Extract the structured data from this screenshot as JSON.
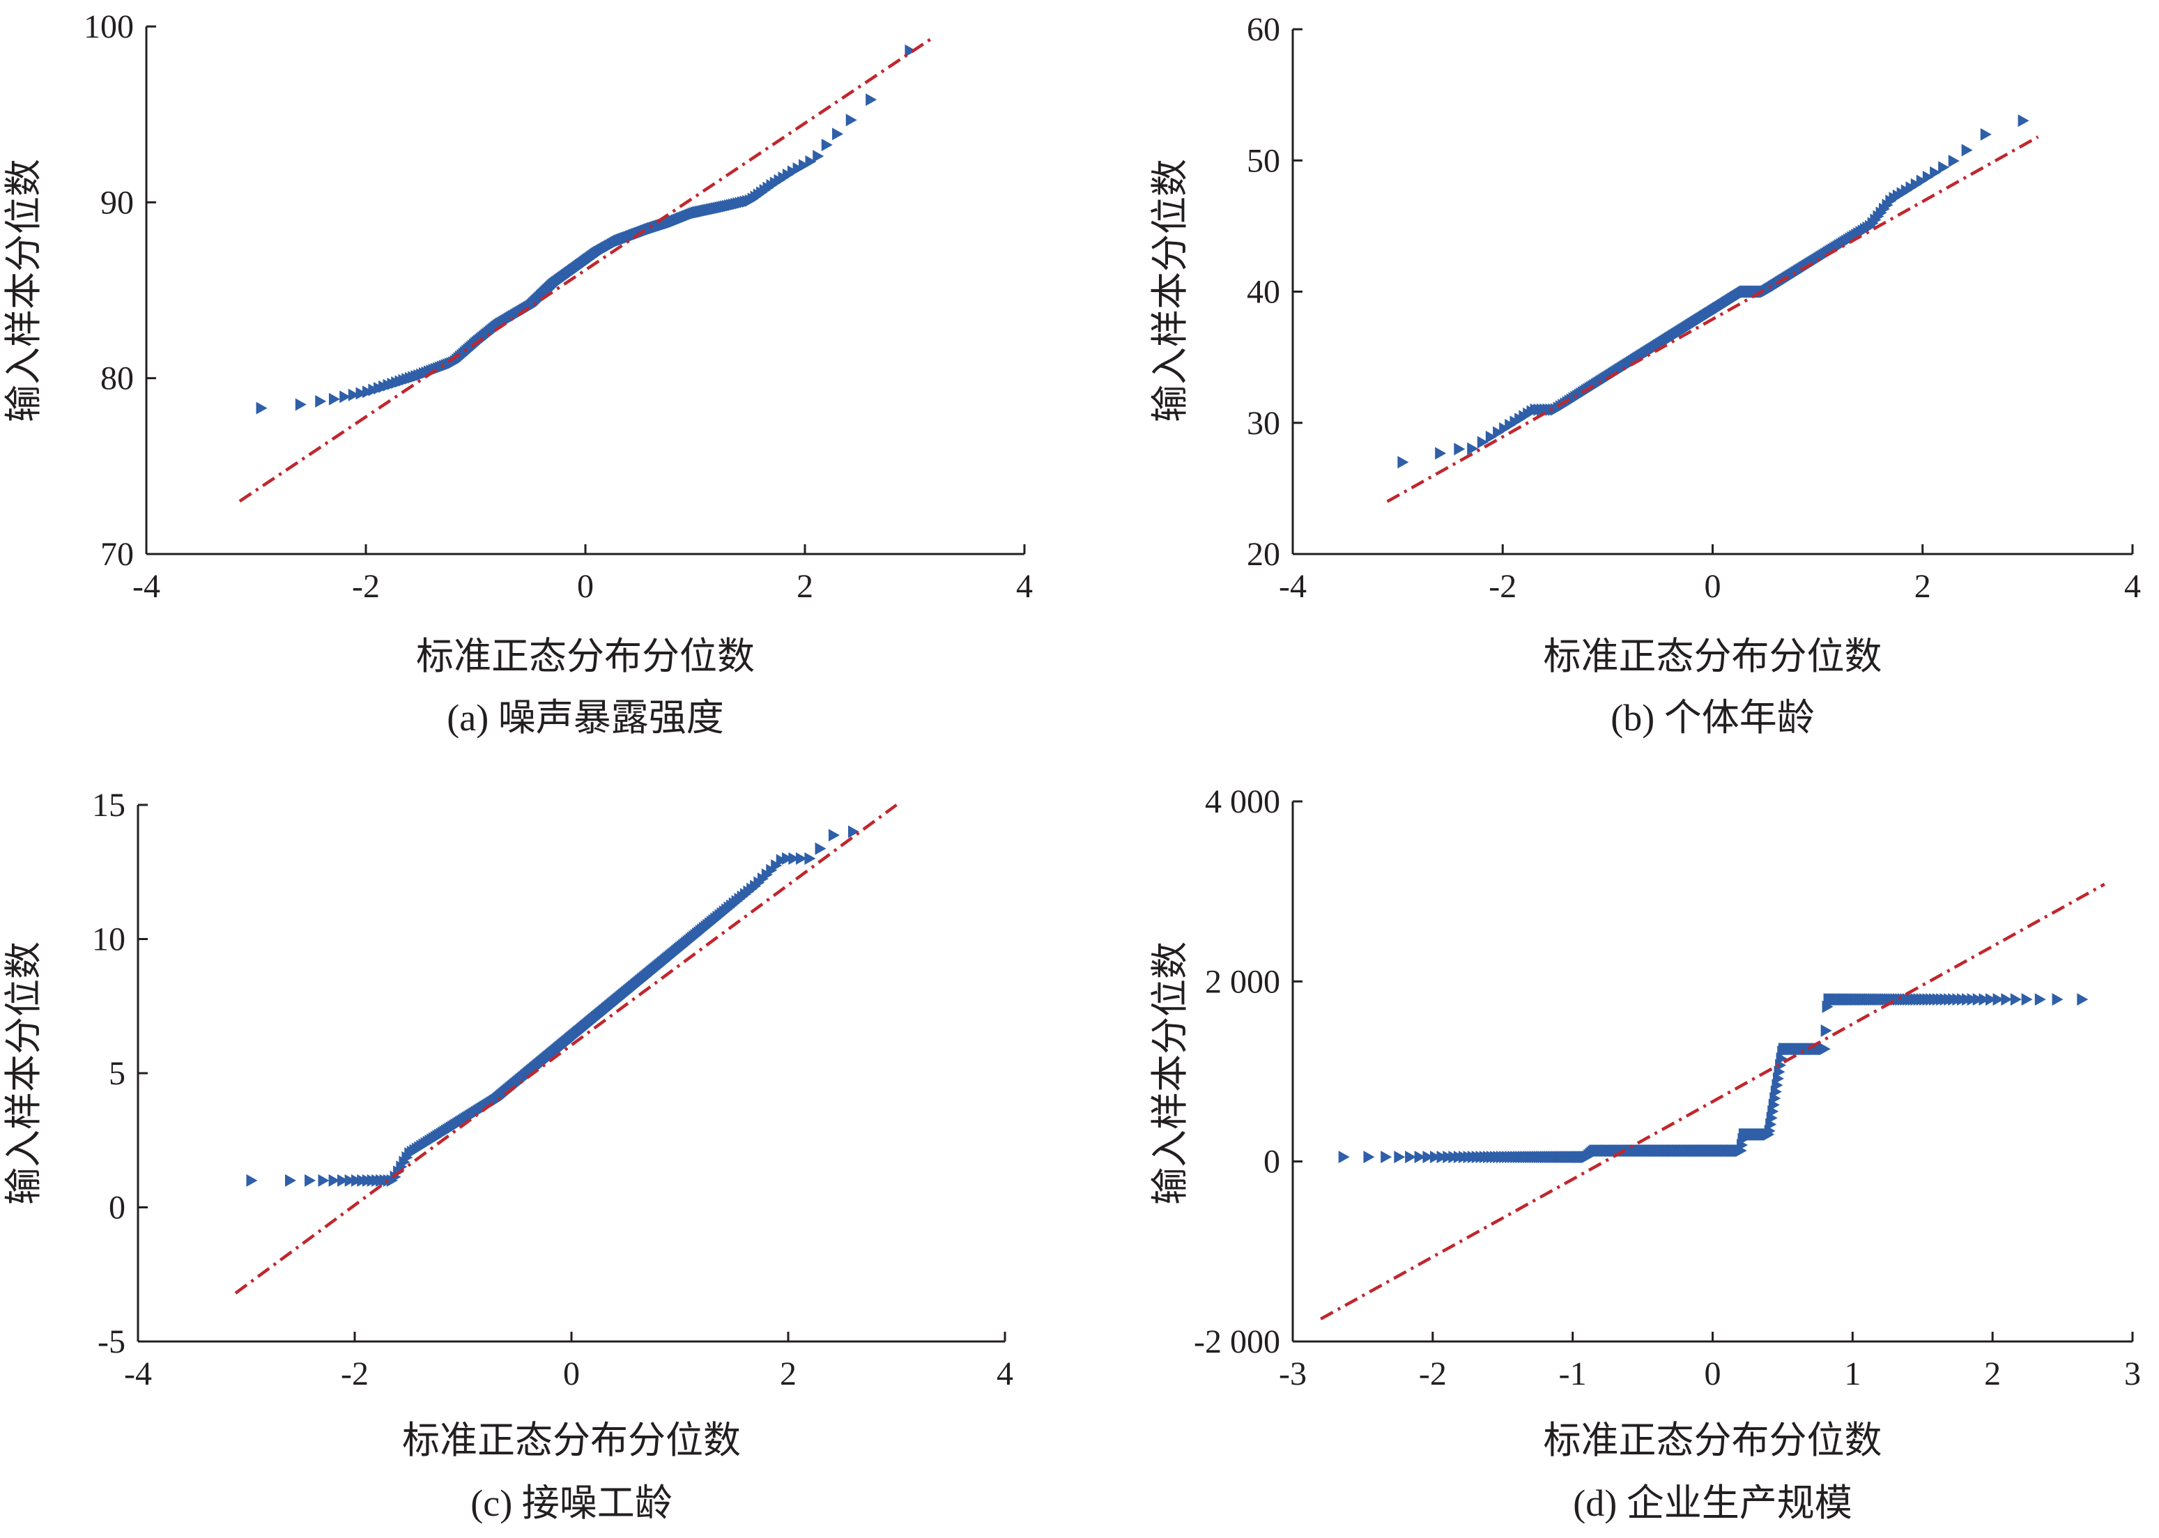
{
  "chart_data": [
    {
      "type": "scatter",
      "caption": "(a) 噪声暴露强度",
      "xlabel": "标准正态分布分位数",
      "ylabel": "输入样本分位数",
      "xlim": [
        -4,
        4
      ],
      "ylim": [
        70,
        100
      ],
      "xticks": [
        -4,
        -2,
        0,
        2,
        4
      ],
      "xtick_labels": [
        "-4",
        "-2",
        "0",
        "2",
        "4"
      ],
      "yticks": [
        70,
        80,
        90,
        100
      ],
      "ytick_labels": [
        "70",
        "80",
        "90",
        "100"
      ],
      "reference_line": {
        "x": [
          -3.15,
          3.15
        ],
        "y": [
          73.0,
          99.3
        ],
        "color": "#c0272d",
        "style": "dash-dot"
      },
      "marker_color": "#2e5fa8",
      "series_profile": {
        "n": 320,
        "x": [
          -3.1,
          -2.8,
          -2.6,
          -2.3,
          -2.0,
          -1.7,
          -1.5,
          -1.2,
          -1.0,
          -0.8,
          -0.5,
          -0.3,
          -0.1,
          0.1,
          0.3,
          0.6,
          0.8,
          1.0,
          1.3,
          1.5,
          1.7,
          1.9,
          2.1,
          2.2,
          2.5,
          2.7,
          2.8,
          3.1
        ],
        "y": [
          78.2,
          78.4,
          78.5,
          78.8,
          79.2,
          79.8,
          80.2,
          80.9,
          82.0,
          83.0,
          84.1,
          85.3,
          86.2,
          87.1,
          87.8,
          88.5,
          88.9,
          89.4,
          89.8,
          90.1,
          91.0,
          91.8,
          92.5,
          93.3,
          95.2,
          96.5,
          98.0,
          99.2
        ]
      }
    },
    {
      "type": "scatter",
      "caption": "(b) 个体年龄",
      "xlabel": "标准正态分布分位数",
      "ylabel": "输入样本分位数",
      "xlim": [
        -4,
        4
      ],
      "ylim": [
        20,
        60
      ],
      "xticks": [
        -4,
        -2,
        0,
        2,
        4
      ],
      "xtick_labels": [
        "-4",
        "-2",
        "0",
        "2",
        "4"
      ],
      "yticks": [
        20,
        30,
        40,
        50,
        60
      ],
      "ytick_labels": [
        "20",
        "30",
        "40",
        "50",
        "60"
      ],
      "reference_line": {
        "x": [
          -3.1,
          3.1
        ],
        "y": [
          24.0,
          51.8
        ],
        "color": "#c0272d",
        "style": "dash-dot"
      },
      "marker_color": "#2e5fa8",
      "series_profile": {
        "n": 320,
        "x": [
          -3.1,
          -2.8,
          -2.5,
          -2.3,
          -2.1,
          -1.9,
          -1.7,
          -1.5,
          -1.3,
          -1.1,
          -0.9,
          -0.7,
          -0.5,
          -0.3,
          -0.1,
          0.1,
          0.3,
          0.5,
          0.7,
          0.9,
          1.1,
          1.3,
          1.5,
          1.7,
          1.9,
          2.1,
          2.3,
          2.6,
          2.8,
          3.1
        ],
        "y": [
          27,
          27,
          28,
          28,
          29,
          30,
          31,
          31,
          32,
          33,
          34,
          35,
          36,
          37,
          38,
          39,
          40,
          40,
          41,
          42,
          43,
          44,
          45,
          47,
          48,
          49,
          50,
          52,
          52,
          54
        ]
      }
    },
    {
      "type": "scatter",
      "caption": "(c) 接噪工龄",
      "xlabel": "标准正态分布分位数",
      "ylabel": "输入样本分位数",
      "xlim": [
        -4,
        4
      ],
      "ylim": [
        -5,
        15
      ],
      "xticks": [
        -4,
        -2,
        0,
        2,
        4
      ],
      "xtick_labels": [
        "-4",
        "-2",
        "0",
        "2",
        "4"
      ],
      "yticks": [
        -5,
        0,
        5,
        10,
        15
      ],
      "ytick_labels": [
        "-5",
        "0",
        "5",
        "10",
        "15"
      ],
      "reference_line": {
        "x": [
          -3.1,
          3.0
        ],
        "y": [
          -3.2,
          15.0
        ],
        "color": "#c0272d",
        "style": "dash-dot"
      },
      "marker_color": "#2e5fa8",
      "series_profile": {
        "n": 320,
        "x": [
          -3.1,
          -2.6,
          -2.2,
          -1.9,
          -1.65,
          -1.5,
          -1.1,
          -0.7,
          -0.4,
          -0.1,
          0.2,
          0.5,
          0.8,
          1.1,
          1.4,
          1.7,
          1.95,
          2.2,
          2.45,
          2.65,
          2.8
        ],
        "y": [
          1,
          1,
          1,
          1,
          1,
          2,
          3,
          4,
          5,
          6,
          7,
          8,
          9,
          10,
          11,
          12,
          13,
          13,
          14,
          14,
          15
        ]
      }
    },
    {
      "type": "scatter",
      "caption": "(d) 企业生产规模",
      "xlabel": "标准正态分布分位数",
      "ylabel": "输入样本分位数",
      "xlim": [
        -3,
        3
      ],
      "ylim": [
        -2000,
        4000
      ],
      "xticks": [
        -3,
        -2,
        -1,
        0,
        1,
        2,
        3
      ],
      "xtick_labels": [
        "-3",
        "-2",
        "-1",
        "0",
        "1",
        "2",
        "3"
      ],
      "yticks": [
        -2000,
        0,
        2000,
        4000
      ],
      "ytick_labels": [
        "-2 000",
        "0",
        "2 000",
        "4 000"
      ],
      "reference_line": {
        "x": [
          -2.8,
          2.8
        ],
        "y": [
          -1750,
          3080
        ],
        "color": "#c0272d",
        "style": "dash-dot"
      },
      "marker_color": "#2e5fa8",
      "series_profile": {
        "n": 360,
        "x": [
          -2.8,
          -2.4,
          -1.6,
          -0.9,
          -0.85,
          0.2,
          0.22,
          0.4,
          0.5,
          0.8,
          0.82,
          1.8,
          2.8
        ],
        "y": [
          50,
          50,
          50,
          50,
          120,
          120,
          300,
          300,
          1250,
          1250,
          1800,
          1800,
          1800
        ]
      }
    }
  ]
}
